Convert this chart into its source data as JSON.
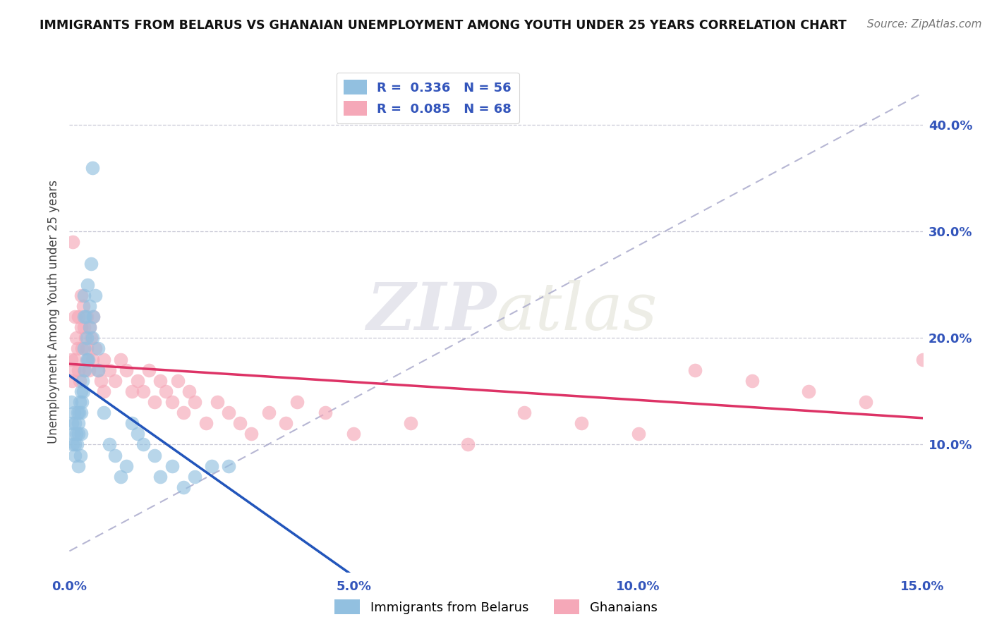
{
  "title": "IMMIGRANTS FROM BELARUS VS GHANAIAN UNEMPLOYMENT AMONG YOUTH UNDER 25 YEARS CORRELATION CHART",
  "source": "Source: ZipAtlas.com",
  "ylabel": "Unemployment Among Youth under 25 years",
  "xlim": [
    0.0,
    0.15
  ],
  "ylim": [
    -0.02,
    0.47
  ],
  "xticks": [
    0.0,
    0.05,
    0.1,
    0.15
  ],
  "xticklabels": [
    "0.0%",
    "5.0%",
    "10.0%",
    "15.0%"
  ],
  "yticks_right": [
    0.1,
    0.2,
    0.3,
    0.4
  ],
  "yticklabels_right": [
    "10.0%",
    "20.0%",
    "30.0%",
    "40.0%"
  ],
  "color_blue": "#92C0E0",
  "color_pink": "#F5A8B8",
  "trend_blue": "#2255BB",
  "trend_pink": "#DD3366",
  "ref_line_color": "#AAAACC",
  "watermark_zip": "ZIP",
  "watermark_atlas": "atlas",
  "axis_label_color": "#3355BB",
  "title_fontsize": 12.5,
  "blue_scatter": {
    "x": [
      0.0003,
      0.0005,
      0.0006,
      0.0007,
      0.0008,
      0.0009,
      0.001,
      0.001,
      0.0012,
      0.0013,
      0.0014,
      0.0015,
      0.0015,
      0.0016,
      0.0017,
      0.0018,
      0.0019,
      0.002,
      0.002,
      0.002,
      0.0022,
      0.0023,
      0.0024,
      0.0025,
      0.0025,
      0.0026,
      0.0027,
      0.0028,
      0.003,
      0.003,
      0.0032,
      0.0033,
      0.0035,
      0.0036,
      0.0038,
      0.004,
      0.004,
      0.0042,
      0.0045,
      0.005,
      0.005,
      0.006,
      0.007,
      0.008,
      0.009,
      0.01,
      0.011,
      0.012,
      0.013,
      0.015,
      0.016,
      0.018,
      0.02,
      0.022,
      0.025,
      0.028
    ],
    "y": [
      0.14,
      0.12,
      0.1,
      0.11,
      0.13,
      0.1,
      0.12,
      0.09,
      0.11,
      0.1,
      0.13,
      0.12,
      0.08,
      0.11,
      0.13,
      0.14,
      0.09,
      0.15,
      0.13,
      0.11,
      0.14,
      0.16,
      0.15,
      0.24,
      0.22,
      0.19,
      0.17,
      0.22,
      0.2,
      0.18,
      0.25,
      0.18,
      0.23,
      0.21,
      0.27,
      0.36,
      0.2,
      0.22,
      0.24,
      0.17,
      0.19,
      0.13,
      0.1,
      0.09,
      0.07,
      0.08,
      0.12,
      0.11,
      0.1,
      0.09,
      0.07,
      0.08,
      0.06,
      0.07,
      0.08,
      0.08
    ]
  },
  "pink_scatter": {
    "x": [
      0.0003,
      0.0005,
      0.0006,
      0.0008,
      0.001,
      0.001,
      0.0012,
      0.0014,
      0.0015,
      0.0016,
      0.0018,
      0.002,
      0.002,
      0.0022,
      0.0024,
      0.0025,
      0.0026,
      0.0028,
      0.003,
      0.003,
      0.0032,
      0.0034,
      0.0036,
      0.0038,
      0.004,
      0.0042,
      0.0045,
      0.005,
      0.0055,
      0.006,
      0.006,
      0.007,
      0.008,
      0.009,
      0.01,
      0.011,
      0.012,
      0.013,
      0.014,
      0.015,
      0.016,
      0.017,
      0.018,
      0.019,
      0.02,
      0.021,
      0.022,
      0.024,
      0.026,
      0.028,
      0.03,
      0.032,
      0.035,
      0.038,
      0.04,
      0.045,
      0.05,
      0.06,
      0.07,
      0.08,
      0.09,
      0.1,
      0.11,
      0.12,
      0.13,
      0.14,
      0.15,
      0.155
    ],
    "y": [
      0.18,
      0.16,
      0.29,
      0.17,
      0.22,
      0.18,
      0.2,
      0.19,
      0.17,
      0.22,
      0.16,
      0.24,
      0.21,
      0.19,
      0.23,
      0.21,
      0.17,
      0.2,
      0.22,
      0.19,
      0.18,
      0.17,
      0.21,
      0.2,
      0.18,
      0.22,
      0.19,
      0.17,
      0.16,
      0.18,
      0.15,
      0.17,
      0.16,
      0.18,
      0.17,
      0.15,
      0.16,
      0.15,
      0.17,
      0.14,
      0.16,
      0.15,
      0.14,
      0.16,
      0.13,
      0.15,
      0.14,
      0.12,
      0.14,
      0.13,
      0.12,
      0.11,
      0.13,
      0.12,
      0.14,
      0.13,
      0.11,
      0.12,
      0.1,
      0.13,
      0.12,
      0.11,
      0.17,
      0.16,
      0.15,
      0.14,
      0.18,
      0.19
    ]
  }
}
